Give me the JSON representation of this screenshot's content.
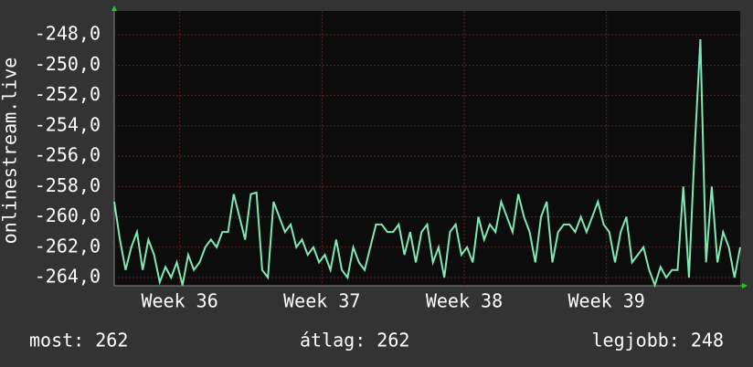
{
  "chart_data": {
    "type": "line",
    "y_label": "onlinestream.live",
    "x": [
      35.54,
      35.58,
      35.62,
      35.66,
      35.7,
      35.74,
      35.78,
      35.82,
      35.86,
      35.9,
      35.94,
      35.98,
      36.02,
      36.06,
      36.1,
      36.14,
      36.18,
      36.22,
      36.26,
      36.3,
      36.34,
      36.38,
      36.42,
      36.46,
      36.5,
      36.54,
      36.58,
      36.62,
      36.66,
      36.7,
      36.74,
      36.78,
      36.82,
      36.86,
      36.9,
      36.94,
      36.98,
      37.02,
      37.06,
      37.1,
      37.14,
      37.18,
      37.22,
      37.26,
      37.3,
      37.34,
      37.38,
      37.42,
      37.46,
      37.5,
      37.54,
      37.58,
      37.62,
      37.66,
      37.7,
      37.74,
      37.78,
      37.82,
      37.86,
      37.9,
      37.94,
      37.98,
      38.02,
      38.06,
      38.1,
      38.14,
      38.18,
      38.22,
      38.26,
      38.3,
      38.34,
      38.38,
      38.42,
      38.46,
      38.5,
      38.54,
      38.58,
      38.62,
      38.66,
      38.7,
      38.74,
      38.78,
      38.82,
      38.86,
      38.9,
      38.94,
      38.98,
      39.02,
      39.06,
      39.1,
      39.14,
      39.18,
      39.22,
      39.26,
      39.3,
      39.34,
      39.38,
      39.42,
      39.46,
      39.5,
      39.54,
      39.58,
      39.62,
      39.66,
      39.7,
      39.74,
      39.78,
      39.82,
      39.86,
      39.9,
      39.94
    ],
    "series": [
      {
        "color": "#7fe8b4",
        "values": [
          -259,
          -261.5,
          -263.5,
          -262,
          -261,
          -263.5,
          -261.5,
          -262.5,
          -264.3,
          -263.3,
          -264,
          -263,
          -264.5,
          -262.5,
          -263.5,
          -263,
          -262,
          -261.5,
          -262,
          -261,
          -261,
          -258.5,
          -260,
          -261.5,
          -258.5,
          -258.4,
          -263.5,
          -264,
          -259,
          -260,
          -261,
          -260.5,
          -262,
          -261.5,
          -262.5,
          -262,
          -263,
          -262.5,
          -263.5,
          -261.5,
          -263.5,
          -264,
          -262,
          -263,
          -263.5,
          -262,
          -260.5,
          -260.5,
          -261,
          -261,
          -260.5,
          -262.5,
          -261,
          -263,
          -261,
          -260.5,
          -263,
          -262,
          -264,
          -261,
          -260.5,
          -262.5,
          -262,
          -263,
          -260,
          -261.5,
          -260.5,
          -261,
          -259,
          -260,
          -261,
          -258.5,
          -260,
          -261,
          -263,
          -260,
          -259,
          -263,
          -261,
          -260.5,
          -260.5,
          -261,
          -260,
          -261,
          -260,
          -259,
          -260.5,
          -261,
          -263,
          -261,
          -260,
          -263,
          -262.5,
          -262,
          -263.5,
          -264.5,
          -263.3,
          -264,
          -263.5,
          -263.5,
          -258,
          -264,
          -255.5,
          -248.3,
          -263,
          -258,
          -263,
          -261,
          -262,
          -264,
          -262
        ]
      }
    ],
    "xlim": [
      35.54,
      39.94
    ],
    "xticks": [
      {
        "value": 36,
        "label": "Week 36"
      },
      {
        "value": 37,
        "label": "Week 37"
      },
      {
        "value": 38,
        "label": "Week 38"
      },
      {
        "value": 39,
        "label": "Week 39"
      }
    ],
    "ylim": [
      -264.54,
      -246.43
    ],
    "yticks": [
      {
        "value": -264,
        "label": "-264,0"
      },
      {
        "value": -262,
        "label": "-262,0"
      },
      {
        "value": -260,
        "label": "-260,0"
      },
      {
        "value": -258,
        "label": "-258,0"
      },
      {
        "value": -256,
        "label": "-256,0"
      },
      {
        "value": -254,
        "label": "-254,0"
      },
      {
        "value": -252,
        "label": "-252,0"
      },
      {
        "value": -250,
        "label": "-250,0"
      },
      {
        "value": -248,
        "label": "-248,0"
      }
    ],
    "grid": true,
    "footer": [
      "most: 262",
      "átlag: 262",
      "legjobb: 248"
    ]
  }
}
